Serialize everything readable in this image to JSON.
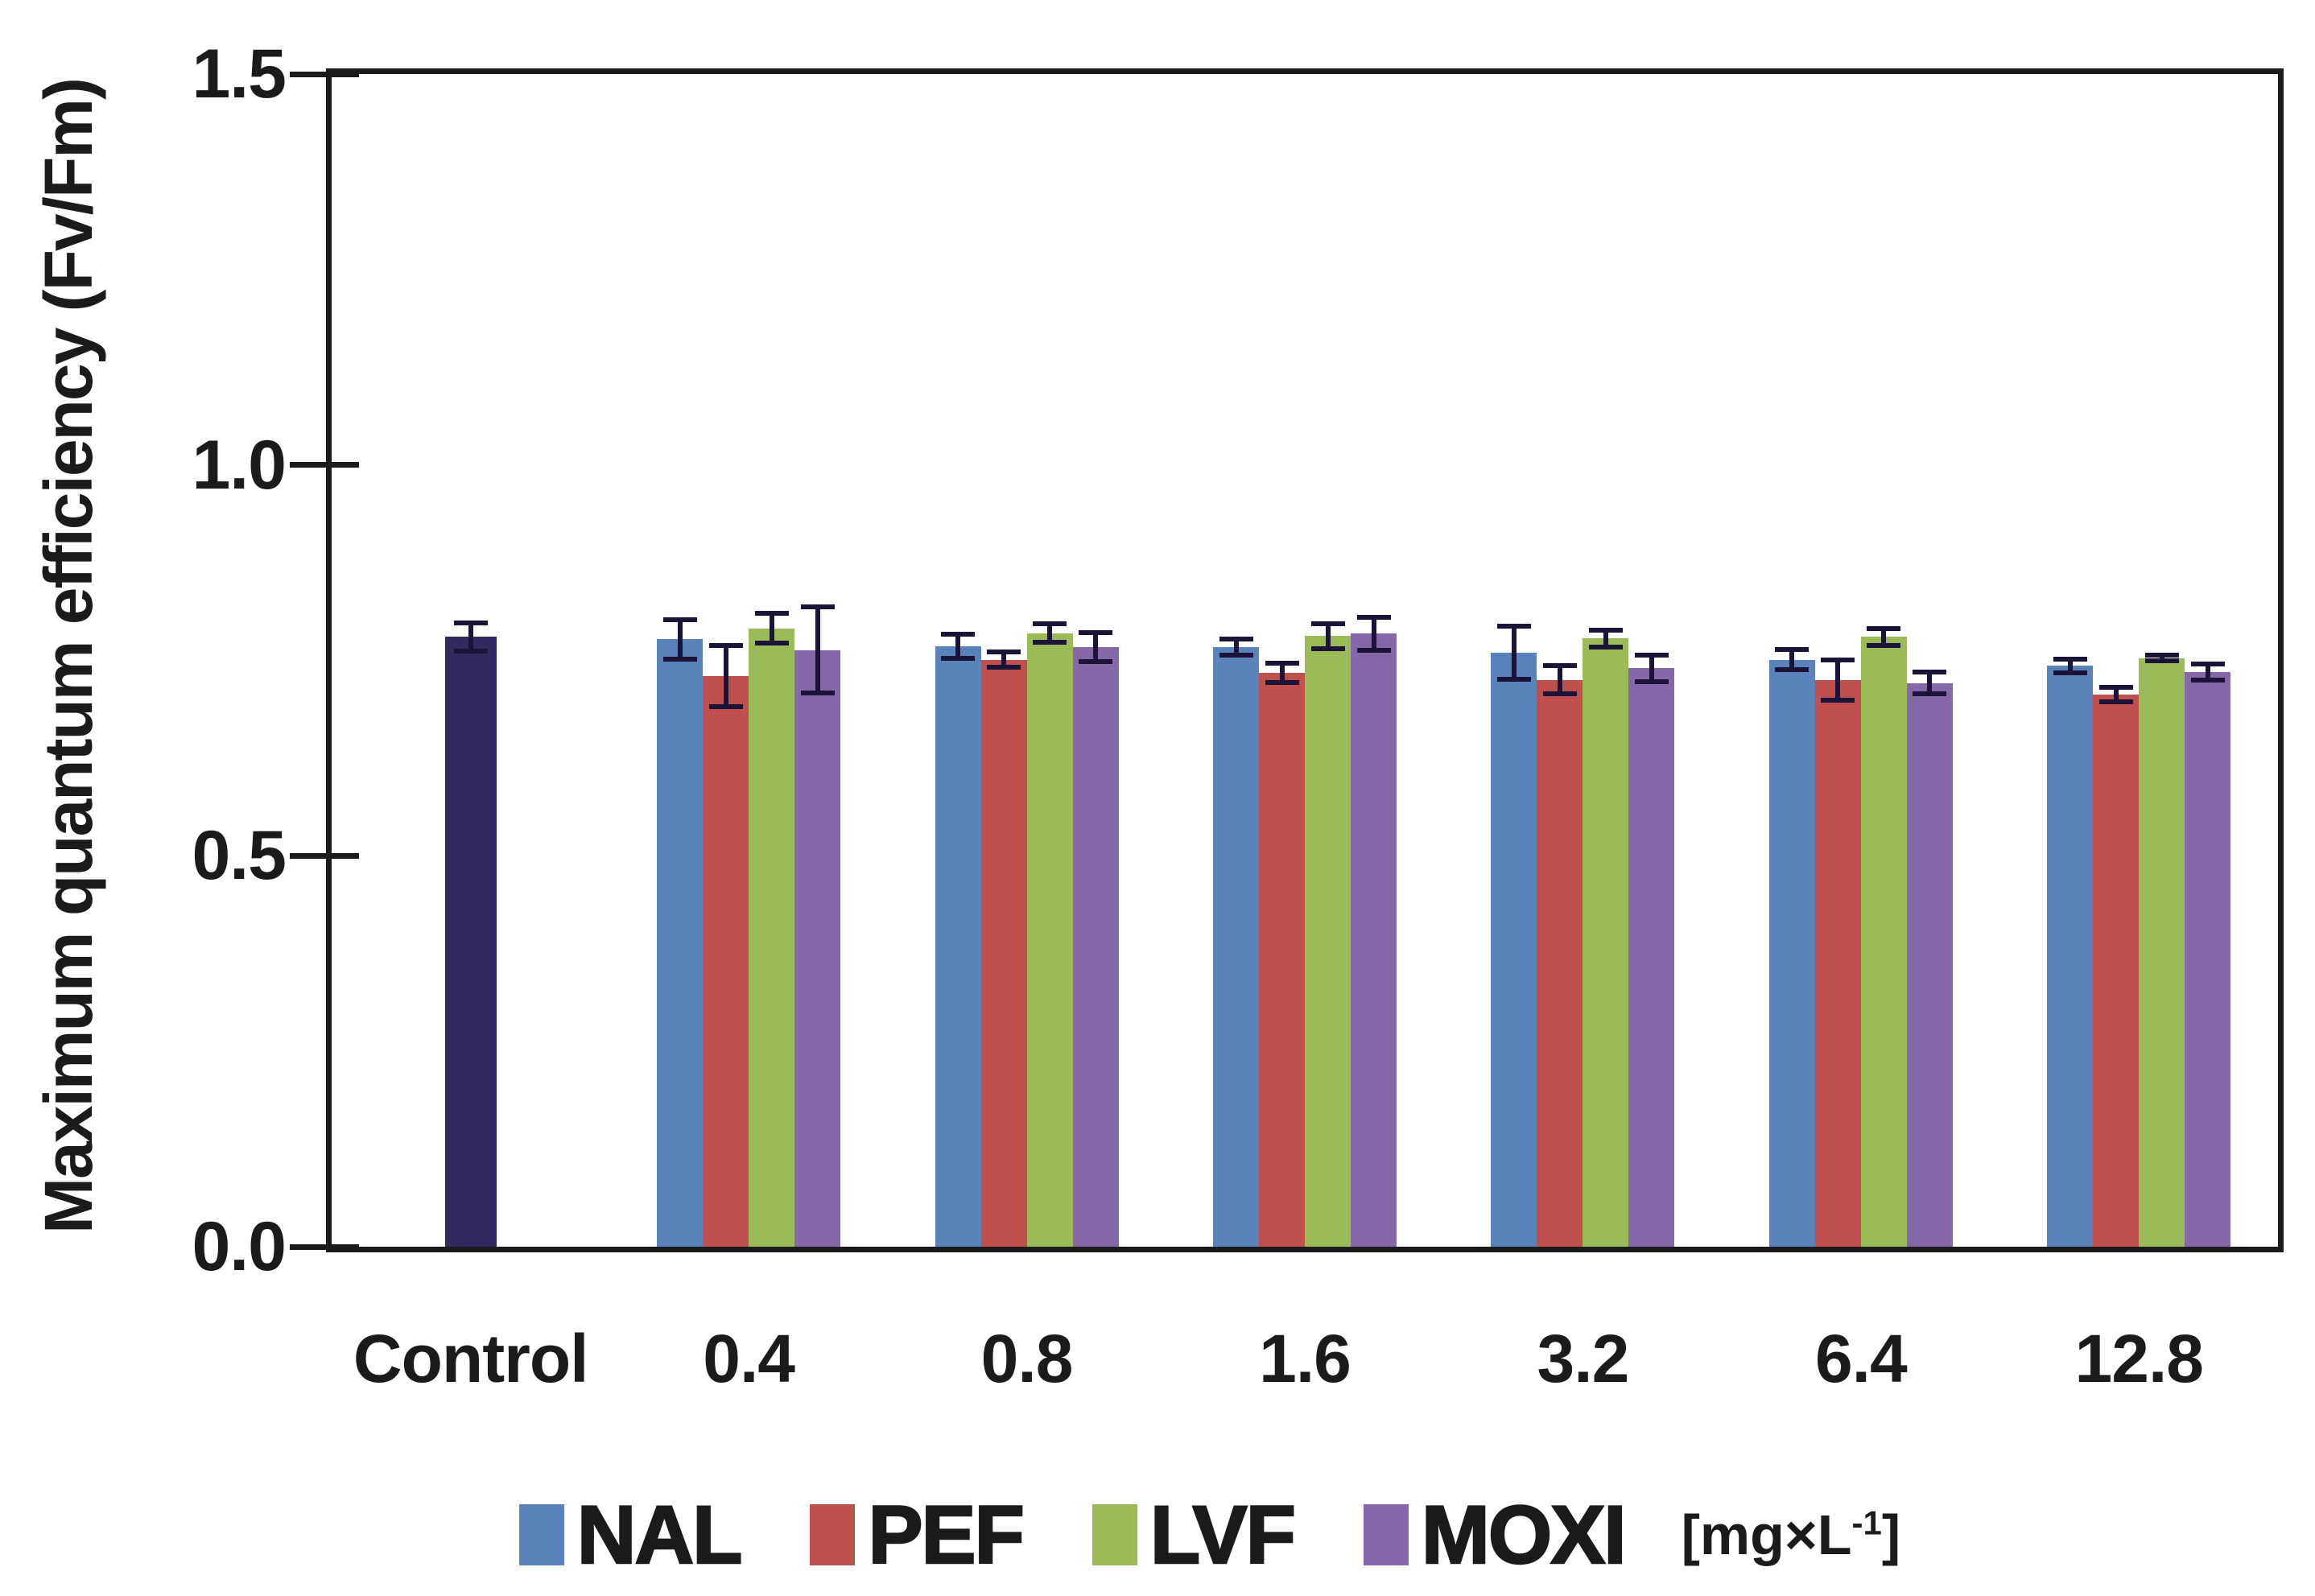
{
  "chart_data": {
    "type": "bar",
    "title": "",
    "ylabel": "Maximum quantum efficiency (Fv/Fm)",
    "xlabel": "",
    "unit_label": "[mg×L⁻¹]",
    "unit_parts": {
      "prefix": "[mg×L",
      "sup": "-1",
      "suffix": "]"
    },
    "ylim": [
      0,
      1.5
    ],
    "yticks": [
      "0.0",
      "0.5",
      "1.0",
      "1.5"
    ],
    "grid": false,
    "legend_position": "bottom",
    "categories": [
      "Control",
      "0.4",
      "0.8",
      "1.6",
      "3.2",
      "6.4",
      "12.8"
    ],
    "series": [
      {
        "name": "Control",
        "color": "#312a5e",
        "in_legend": false,
        "values": [
          0.78,
          null,
          null,
          null,
          null,
          null,
          null
        ],
        "errors": [
          0.018,
          null,
          null,
          null,
          null,
          null,
          null
        ]
      },
      {
        "name": "NAL",
        "color": "#5b83bb",
        "in_legend": true,
        "values": [
          null,
          0.777,
          0.768,
          0.767,
          0.76,
          0.751,
          0.743
        ],
        "errors": [
          null,
          0.025,
          0.015,
          0.01,
          0.034,
          0.013,
          0.009
        ]
      },
      {
        "name": "PEF",
        "color": "#c0504d",
        "in_legend": true,
        "values": [
          null,
          0.73,
          0.751,
          0.734,
          0.725,
          0.725,
          0.706
        ],
        "errors": [
          null,
          0.039,
          0.01,
          0.012,
          0.018,
          0.026,
          0.009
        ]
      },
      {
        "name": "LVF",
        "color": "#9bbb59",
        "in_legend": true,
        "values": [
          null,
          0.791,
          0.785,
          0.781,
          0.778,
          0.78,
          0.753
        ],
        "errors": [
          null,
          0.019,
          0.012,
          0.016,
          0.011,
          0.011,
          0.004
        ]
      },
      {
        "name": "MOXI",
        "color": "#8468a7",
        "in_legend": true,
        "values": [
          null,
          0.763,
          0.767,
          0.784,
          0.74,
          0.721,
          0.735
        ],
        "errors": [
          null,
          0.055,
          0.019,
          0.021,
          0.017,
          0.014,
          0.01
        ]
      }
    ],
    "error_bar_color": "#1c1339",
    "axis_color": "#1b1b1b"
  }
}
